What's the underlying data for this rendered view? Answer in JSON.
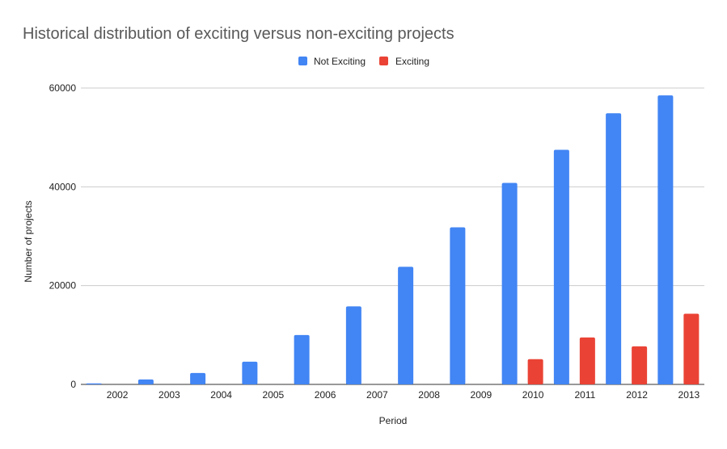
{
  "chart_data": {
    "type": "bar",
    "title": "Historical distribution of exciting versus non-exciting projects",
    "xlabel": "Period",
    "ylabel": "Number of projects",
    "categories": [
      "2002",
      "2003",
      "2004",
      "2005",
      "2006",
      "2007",
      "2008",
      "2009",
      "2010",
      "2011",
      "2012",
      "2013"
    ],
    "series": [
      {
        "name": "Not Exciting",
        "color": "#4285F4",
        "values": [
          200,
          1000,
          2300,
          4600,
          10000,
          15800,
          23800,
          31800,
          40800,
          47500,
          54900,
          58500
        ]
      },
      {
        "name": "Exciting",
        "color": "#EA4335",
        "values": [
          0,
          0,
          0,
          0,
          0,
          0,
          0,
          0,
          5100,
          9500,
          7700,
          14300
        ]
      }
    ],
    "ylim": [
      0,
      60000
    ],
    "yticks": [
      "0",
      "20000",
      "40000",
      "60000"
    ],
    "grid": true,
    "legend_position": "top-center"
  }
}
